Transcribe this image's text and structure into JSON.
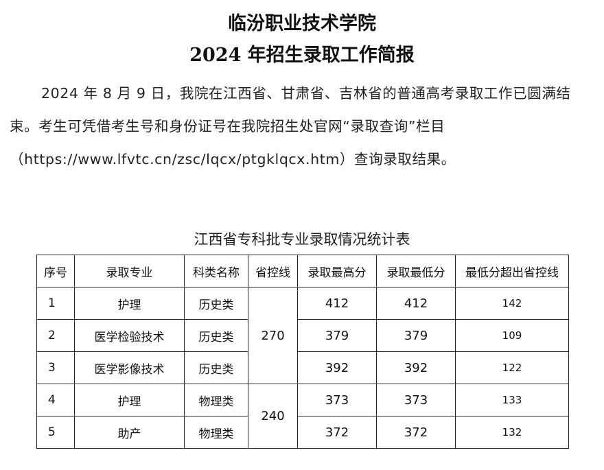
{
  "document": {
    "title": "临汾职业技术学院",
    "subtitle": "2024 年招生录取工作简报",
    "paragraph": "2024 年 8 月 9 日，我院在江西省、甘肃省、吉林省的普通高考录取工作已圆满结束。考生可凭借考生号和身份证号在我院招生处官网“录取查询”栏目（https://www.lfvtc.cn/zsc/lqcx/ptgklqcx.htm）查询录取结果。"
  },
  "table": {
    "caption": "江西省专科批专业录取情况统计表",
    "headers": [
      "序号",
      "录取专业",
      "科类名称",
      "省控线",
      "录取最高分",
      "录取最低分",
      "最低分超出省控线"
    ],
    "rows": [
      {
        "no": "1",
        "major": "护理",
        "category": "历史类",
        "max": "412",
        "min": "412",
        "over": "142"
      },
      {
        "no": "2",
        "major": "医学检验技术",
        "category": "历史类",
        "max": "379",
        "min": "379",
        "over": "109"
      },
      {
        "no": "3",
        "major": "医学影像技术",
        "category": "历史类",
        "max": "392",
        "min": "392",
        "over": "122"
      },
      {
        "no": "4",
        "major": "护理",
        "category": "物理类",
        "max": "373",
        "min": "373",
        "over": "133"
      },
      {
        "no": "5",
        "major": "助产",
        "category": "物理类",
        "max": "372",
        "min": "372",
        "over": "132"
      }
    ],
    "control_lines": {
      "history": "270",
      "physics": "240"
    }
  }
}
